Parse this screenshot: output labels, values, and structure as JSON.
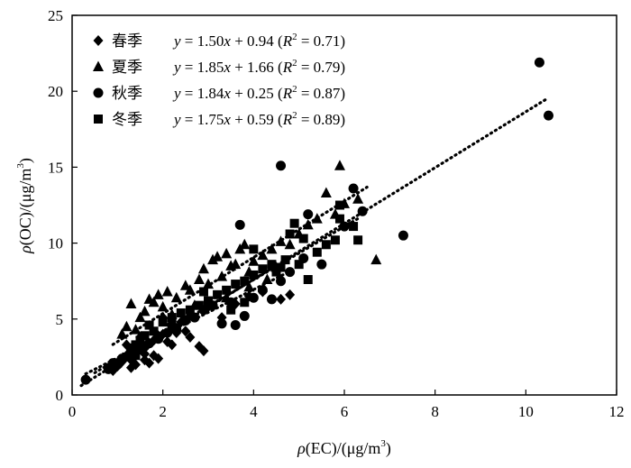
{
  "chart_data": {
    "type": "scatter",
    "xlabel": {
      "prefix": "ρ",
      "main": "(EC)/(μg/m",
      "sup": "3",
      "suffix": ")"
    },
    "ylabel": {
      "prefix": "ρ",
      "main": "(OC)/(μg/m",
      "sup": "3",
      "suffix": ")"
    },
    "xlim": [
      0,
      12
    ],
    "ylim": [
      0,
      25
    ],
    "xticks": [
      0,
      2,
      4,
      6,
      8,
      10,
      12
    ],
    "yticks": [
      0,
      5,
      10,
      15,
      20,
      25
    ],
    "legend_placement": "top-left",
    "grid": false,
    "series": [
      {
        "name": "春季",
        "marker": "diamond",
        "equation": "y = 1.50x + 0.94 (R2 = 0.71)",
        "fit": {
          "slope": 1.5,
          "intercept": 0.94,
          "r2": "0.71",
          "x_range": [
            0.3,
            4.8
          ]
        },
        "points": [
          [
            0.9,
            1.6
          ],
          [
            1.0,
            1.9
          ],
          [
            1.1,
            2.2
          ],
          [
            1.2,
            2.6
          ],
          [
            1.3,
            2.3
          ],
          [
            1.4,
            2.9
          ],
          [
            1.5,
            3.1
          ],
          [
            1.6,
            2.7
          ],
          [
            1.7,
            3.4
          ],
          [
            1.8,
            3.6
          ],
          [
            1.9,
            3.9
          ],
          [
            2.0,
            4.0
          ],
          [
            2.1,
            3.5
          ],
          [
            2.2,
            4.4
          ],
          [
            2.3,
            4.1
          ],
          [
            2.4,
            4.8
          ],
          [
            2.5,
            4.2
          ],
          [
            2.6,
            3.8
          ],
          [
            2.8,
            3.2
          ],
          [
            2.9,
            2.9
          ],
          [
            1.4,
            2.0
          ],
          [
            1.6,
            2.3
          ],
          [
            1.8,
            2.6
          ],
          [
            2.2,
            3.3
          ],
          [
            2.6,
            5.2
          ],
          [
            3.0,
            5.8
          ],
          [
            3.3,
            5.1
          ],
          [
            3.6,
            6.0
          ],
          [
            3.9,
            6.5
          ],
          [
            4.2,
            6.8
          ],
          [
            4.6,
            6.3
          ],
          [
            4.8,
            6.6
          ],
          [
            1.2,
            3.3
          ],
          [
            1.5,
            3.8
          ],
          [
            2.0,
            5.1
          ],
          [
            1.3,
            1.8
          ],
          [
            1.7,
            2.1
          ],
          [
            1.9,
            2.4
          ]
        ]
      },
      {
        "name": "夏季",
        "marker": "triangle",
        "equation": "y = 1.85x + 1.66 (R2 = 0.79)",
        "fit": {
          "slope": 1.85,
          "intercept": 1.66,
          "r2": "0.79",
          "x_range": [
            0.9,
            6.5
          ]
        },
        "points": [
          [
            1.1,
            4.0
          ],
          [
            1.2,
            4.5
          ],
          [
            1.3,
            6.0
          ],
          [
            1.5,
            5.1
          ],
          [
            1.6,
            5.5
          ],
          [
            1.7,
            6.3
          ],
          [
            1.8,
            6.1
          ],
          [
            1.9,
            6.6
          ],
          [
            2.0,
            5.8
          ],
          [
            2.1,
            6.8
          ],
          [
            2.3,
            6.4
          ],
          [
            2.5,
            7.2
          ],
          [
            2.6,
            6.9
          ],
          [
            2.8,
            7.6
          ],
          [
            2.9,
            8.3
          ],
          [
            3.0,
            7.3
          ],
          [
            3.1,
            8.9
          ],
          [
            3.2,
            9.1
          ],
          [
            3.3,
            7.8
          ],
          [
            3.4,
            9.3
          ],
          [
            3.5,
            8.5
          ],
          [
            3.6,
            8.6
          ],
          [
            3.7,
            9.6
          ],
          [
            3.8,
            9.9
          ],
          [
            3.9,
            8.1
          ],
          [
            4.0,
            8.8
          ],
          [
            4.2,
            9.2
          ],
          [
            4.4,
            9.6
          ],
          [
            4.6,
            10.1
          ],
          [
            4.8,
            9.9
          ],
          [
            5.0,
            10.6
          ],
          [
            5.2,
            11.2
          ],
          [
            5.4,
            11.6
          ],
          [
            5.6,
            13.3
          ],
          [
            5.8,
            11.9
          ],
          [
            5.9,
            15.1
          ],
          [
            6.0,
            12.6
          ],
          [
            6.3,
            12.9
          ],
          [
            6.7,
            8.9
          ],
          [
            4.3,
            7.6
          ],
          [
            2.2,
            5.3
          ],
          [
            1.4,
            4.3
          ],
          [
            2.7,
            5.9
          ],
          [
            3.4,
            6.4
          ],
          [
            3.9,
            7.1
          ],
          [
            4.5,
            8.4
          ]
        ]
      },
      {
        "name": "秋季",
        "marker": "circle",
        "equation": "y = 1.84x + 0.25 (R2 = 0.87)",
        "fit": {
          "slope": 1.84,
          "intercept": 0.25,
          "r2": "0.87",
          "x_range": [
            0.2,
            10.5
          ]
        },
        "points": [
          [
            0.3,
            1.0
          ],
          [
            0.8,
            1.7
          ],
          [
            0.9,
            2.1
          ],
          [
            1.1,
            2.4
          ],
          [
            1.3,
            2.9
          ],
          [
            1.5,
            3.0
          ],
          [
            1.7,
            3.4
          ],
          [
            1.9,
            3.7
          ],
          [
            2.1,
            4.1
          ],
          [
            2.3,
            4.3
          ],
          [
            2.5,
            4.9
          ],
          [
            2.7,
            5.1
          ],
          [
            2.9,
            5.6
          ],
          [
            3.1,
            5.9
          ],
          [
            3.3,
            4.7
          ],
          [
            3.5,
            6.1
          ],
          [
            3.6,
            4.6
          ],
          [
            3.8,
            5.2
          ],
          [
            3.7,
            11.2
          ],
          [
            4.0,
            6.4
          ],
          [
            4.2,
            6.9
          ],
          [
            4.4,
            6.3
          ],
          [
            4.6,
            7.5
          ],
          [
            4.8,
            8.1
          ],
          [
            4.6,
            15.1
          ],
          [
            5.1,
            9.0
          ],
          [
            5.2,
            11.9
          ],
          [
            5.5,
            8.6
          ],
          [
            6.0,
            11.1
          ],
          [
            6.2,
            13.6
          ],
          [
            6.4,
            12.1
          ],
          [
            7.3,
            10.5
          ],
          [
            10.3,
            21.9
          ],
          [
            10.5,
            18.4
          ],
          [
            1.0,
            2.0
          ],
          [
            1.6,
            3.2
          ],
          [
            2.2,
            4.6
          ]
        ]
      },
      {
        "name": "冬季",
        "marker": "square",
        "equation": "y = 1.75x + 0.59 (R2 = 0.89)",
        "fit": {
          "slope": 1.75,
          "intercept": 0.59,
          "r2": "0.89",
          "x_range": [
            0.5,
            6.3
          ]
        },
        "points": [
          [
            0.8,
            1.8
          ],
          [
            1.0,
            2.1
          ],
          [
            1.2,
            2.5
          ],
          [
            1.3,
            3.1
          ],
          [
            1.4,
            3.3
          ],
          [
            1.5,
            3.6
          ],
          [
            1.6,
            3.9
          ],
          [
            1.7,
            4.6
          ],
          [
            1.8,
            4.2
          ],
          [
            2.0,
            4.8
          ],
          [
            2.2,
            5.1
          ],
          [
            2.4,
            5.4
          ],
          [
            2.6,
            5.6
          ],
          [
            2.8,
            5.9
          ],
          [
            3.0,
            6.2
          ],
          [
            3.2,
            6.6
          ],
          [
            3.4,
            6.9
          ],
          [
            3.6,
            7.3
          ],
          [
            3.8,
            7.5
          ],
          [
            4.0,
            7.9
          ],
          [
            4.0,
            9.6
          ],
          [
            4.2,
            8.3
          ],
          [
            4.4,
            8.6
          ],
          [
            4.5,
            8.1
          ],
          [
            4.6,
            8.4
          ],
          [
            4.7,
            8.9
          ],
          [
            4.8,
            10.6
          ],
          [
            4.9,
            11.3
          ],
          [
            5.0,
            8.6
          ],
          [
            5.2,
            7.6
          ],
          [
            5.4,
            9.4
          ],
          [
            5.6,
            9.9
          ],
          [
            5.8,
            10.2
          ],
          [
            5.9,
            11.6
          ],
          [
            5.9,
            12.5
          ],
          [
            6.2,
            11.1
          ],
          [
            6.3,
            10.2
          ],
          [
            5.1,
            10.3
          ],
          [
            3.5,
            5.6
          ],
          [
            3.8,
            6.1
          ],
          [
            1.4,
            2.6
          ],
          [
            2.9,
            6.8
          ]
        ]
      }
    ]
  }
}
